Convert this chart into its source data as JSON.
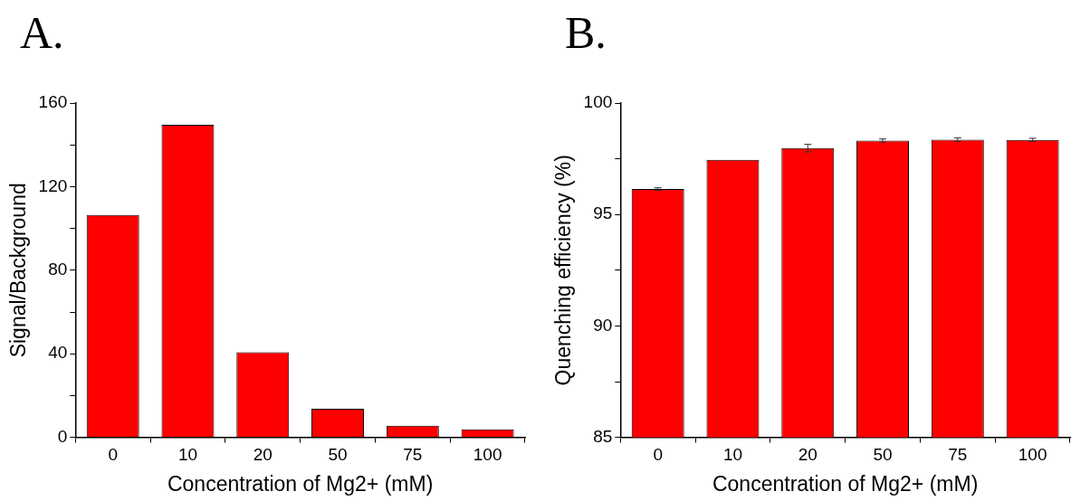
{
  "chart_data": [
    {
      "type": "bar",
      "title": "A.",
      "xlabel": "Concentration of Mg2+ (mM)",
      "ylabel": "Signal/Background",
      "categories": [
        "0",
        "10",
        "20",
        "50",
        "75",
        "100"
      ],
      "values": [
        106.4,
        149.6,
        40.7,
        13.7,
        5.6,
        3.8
      ],
      "color": "#ff0000",
      "ylim": [
        0,
        160
      ],
      "yticks": [
        0,
        {
          "value": 20,
          "label": null
        },
        40,
        {
          "value": 60,
          "label": null
        },
        80,
        {
          "value": 100,
          "label": null
        },
        120,
        {
          "value": 140,
          "label": null
        },
        160
      ],
      "grid": false,
      "legend": false
    },
    {
      "type": "bar",
      "title": "B.",
      "xlabel": "Concentration of Mg2+ (mM)",
      "ylabel": "Quenching efficiency (%)",
      "categories": [
        "0",
        "10",
        "20",
        "50",
        "75",
        "100"
      ],
      "values": [
        96.14,
        97.45,
        97.98,
        98.32,
        98.36,
        98.35
      ],
      "errors": [
        0.06,
        null,
        0.17,
        0.07,
        0.08,
        0.07
      ],
      "color": "#ff0000",
      "ylim": [
        85,
        100
      ],
      "yticks": [
        85,
        {
          "value": 87.5,
          "label": null
        },
        90,
        {
          "value": 92.5,
          "label": null
        },
        95,
        {
          "value": 97.5,
          "label": null
        },
        100
      ],
      "grid": false,
      "legend": false
    }
  ]
}
